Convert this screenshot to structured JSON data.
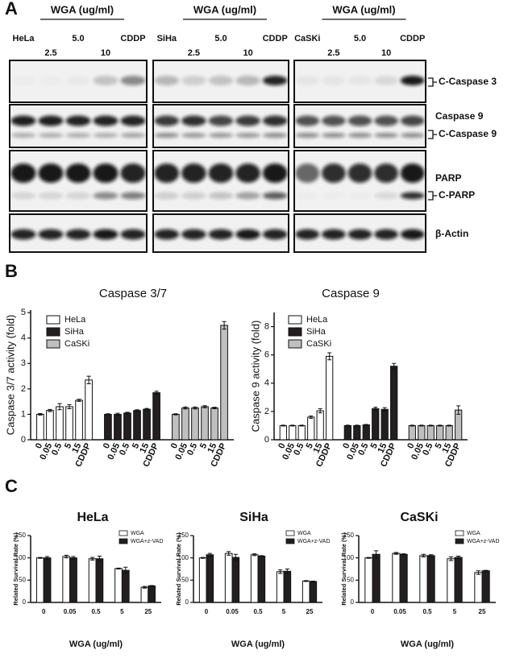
{
  "panel_labels": [
    "A",
    "B",
    "C"
  ],
  "blot": {
    "groups": [
      {
        "header": "WGA (ug/ml)",
        "lanes_top": [
          "HeLa",
          "5.0",
          "CDDP"
        ],
        "lanes_bottom": [
          "2.5",
          "10"
        ]
      },
      {
        "header": "WGA (ug/ml)",
        "lanes_top": [
          "SiHa",
          "5.0",
          "CDDP"
        ],
        "lanes_bottom": [
          "2.5",
          "10"
        ]
      },
      {
        "header": "WGA (ug/ml)",
        "lanes_top": [
          "CaSKi",
          "5.0",
          "CDDP"
        ],
        "lanes_bottom": [
          "2.5",
          "10"
        ]
      }
    ],
    "bands": [
      "C-Caspase 3",
      "Caspase 9",
      "C-Caspase 9",
      "PARP",
      "C-PARP",
      "β-Actin"
    ]
  },
  "chart_data": [
    {
      "type": "bar",
      "title": "Caspase 3/7",
      "ylabel": "Caspase 3/7 activity (fold)",
      "categories": [
        "0",
        "0.05",
        "0.5",
        "5",
        "15",
        "CDDP"
      ],
      "ylim": [
        0,
        5.1
      ],
      "yticks": [
        0,
        1,
        2,
        3,
        4,
        5
      ],
      "series": [
        {
          "name": "HeLa",
          "color": "#ffffff",
          "values": [
            1.0,
            1.15,
            1.3,
            1.3,
            1.55,
            2.35
          ],
          "errors": [
            0.03,
            0.04,
            0.12,
            0.08,
            0.04,
            0.15
          ]
        },
        {
          "name": "SiHa",
          "color": "#231f20",
          "values": [
            1.0,
            1.0,
            1.05,
            1.15,
            1.2,
            1.85
          ],
          "errors": [
            0.02,
            0.04,
            0.03,
            0.03,
            0.03,
            0.06
          ]
        },
        {
          "name": "CaSKi",
          "color": "#bfbfbf",
          "values": [
            1.0,
            1.25,
            1.25,
            1.3,
            1.25,
            4.5
          ],
          "errors": [
            0.02,
            0.04,
            0.04,
            0.04,
            0.03,
            0.15
          ]
        }
      ]
    },
    {
      "type": "bar",
      "title": "Caspase 9",
      "ylabel": "Caspase 9 activity (fold)",
      "categories": [
        "0",
        "0.05",
        "0.5",
        "5",
        "15",
        "CDDP"
      ],
      "ylim": [
        0,
        9
      ],
      "yticks": [
        0,
        2,
        4,
        6,
        8
      ],
      "series": [
        {
          "name": "HeLa",
          "color": "#ffffff",
          "values": [
            1.0,
            1.0,
            1.0,
            1.6,
            2.05,
            5.9
          ],
          "errors": [
            0.03,
            0.03,
            0.03,
            0.08,
            0.15,
            0.25
          ]
        },
        {
          "name": "SiHa",
          "color": "#231f20",
          "values": [
            1.0,
            1.0,
            1.05,
            2.2,
            2.15,
            5.2
          ],
          "errors": [
            0.03,
            0.03,
            0.03,
            0.1,
            0.12,
            0.2
          ]
        },
        {
          "name": "CaSKi",
          "color": "#bfbfbf",
          "values": [
            1.0,
            1.0,
            1.0,
            1.0,
            1.0,
            2.1
          ],
          "errors": [
            0.03,
            0.03,
            0.03,
            0.03,
            0.03,
            0.3
          ]
        }
      ]
    },
    {
      "type": "bar",
      "title": "HeLa",
      "ylabel": "Related Survival Rate (%)",
      "xlabel": "WGA (ug/ml)",
      "categories": [
        "0",
        "0.05",
        "0.5",
        "5",
        "25"
      ],
      "ylim": [
        0,
        150
      ],
      "yticks": [
        0,
        50,
        100,
        150
      ],
      "series": [
        {
          "name": "WGA",
          "color": "#ffffff",
          "values": [
            100,
            103,
            98,
            76,
            34
          ],
          "errors": [
            1,
            3,
            3,
            1,
            2
          ]
        },
        {
          "name": "WGA+z-VAD",
          "color": "#231f20",
          "values": [
            100,
            100,
            98,
            72,
            37
          ],
          "errors": [
            3,
            3,
            6,
            7,
            1
          ]
        }
      ]
    },
    {
      "type": "bar",
      "title": "SiHa",
      "ylabel": "Related Survival Rate (%)",
      "xlabel": "WGA (ug/ml)",
      "categories": [
        "0",
        "0.05",
        "0.5",
        "5",
        "25"
      ],
      "ylim": [
        0,
        150
      ],
      "yticks": [
        0,
        50,
        100,
        150
      ],
      "series": [
        {
          "name": "WGA",
          "color": "#ffffff",
          "values": [
            100,
            110,
            107,
            69,
            48
          ],
          "errors": [
            1,
            4,
            2,
            4,
            1
          ]
        },
        {
          "name": "WGA+z-VAD",
          "color": "#231f20",
          "values": [
            107,
            101,
            104,
            70,
            47
          ],
          "errors": [
            3,
            7,
            1,
            5,
            1
          ]
        }
      ]
    },
    {
      "type": "bar",
      "title": "CaSKi",
      "ylabel": "Related Survival Rate (%)",
      "xlabel": "WGA (ug/ml)",
      "categories": [
        "0",
        "0.05",
        "0.5",
        "5",
        "25"
      ],
      "ylim": [
        0,
        150
      ],
      "yticks": [
        0,
        50,
        100,
        150
      ],
      "series": [
        {
          "name": "WGA",
          "color": "#ffffff",
          "values": [
            100,
            110,
            105,
            98,
            67
          ],
          "errors": [
            1,
            2,
            3,
            4,
            4
          ]
        },
        {
          "name": "WGA+z-VAD",
          "color": "#231f20",
          "values": [
            108,
            108,
            105,
            101,
            71
          ],
          "errors": [
            8,
            1,
            2,
            3,
            1
          ]
        }
      ]
    }
  ]
}
